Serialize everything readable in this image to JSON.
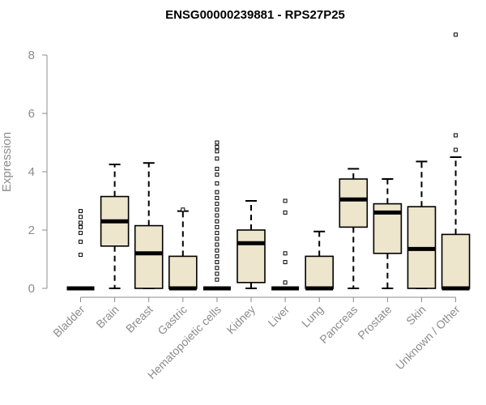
{
  "chart_data": {
    "type": "boxplot",
    "title": "ENSG00000239881 - RPS27P25",
    "xlabel": "",
    "ylabel": "Expression",
    "ylim": [
      0,
      8.7
    ],
    "yticks": [
      0,
      2,
      4,
      6,
      8
    ],
    "box_fill": "#ede5cc",
    "categories": [
      "Bladder",
      "Brain",
      "Breast",
      "Gastric",
      "Hematopoietic cells",
      "Kidney",
      "Liver",
      "Lung",
      "Pancreas",
      "Prostate",
      "Skin",
      "Unknown / Other"
    ],
    "boxes": [
      {
        "category": "Bladder",
        "min": 0,
        "q1": 0,
        "median": 0,
        "q3": 0,
        "max": 0,
        "outliers": [
          1.15,
          1.6,
          1.9,
          2.1,
          2.25,
          2.45,
          2.65
        ]
      },
      {
        "category": "Brain",
        "min": 0,
        "q1": 1.45,
        "median": 2.3,
        "q3": 3.15,
        "max": 4.25,
        "outliers": []
      },
      {
        "category": "Breast",
        "min": 0,
        "q1": 0,
        "median": 1.2,
        "q3": 2.15,
        "max": 4.3,
        "outliers": []
      },
      {
        "category": "Gastric",
        "min": 0,
        "q1": 0,
        "median": 0,
        "q3": 1.1,
        "max": 2.65,
        "outliers": [
          2.7
        ]
      },
      {
        "category": "Hematopoietic cells",
        "min": 0,
        "q1": 0,
        "median": 0,
        "q3": 0,
        "max": 0,
        "outliers": [
          0.3,
          0.5,
          0.7,
          0.9,
          1.1,
          1.3,
          1.5,
          1.7,
          1.9,
          2.1,
          2.3,
          2.5,
          2.7,
          2.9,
          3.1,
          3.3,
          3.6,
          3.9,
          4.1,
          4.45,
          4.7,
          4.85,
          5.0
        ]
      },
      {
        "category": "Kidney",
        "min": 0,
        "q1": 0.2,
        "median": 1.55,
        "q3": 2.0,
        "max": 3.0,
        "outliers": []
      },
      {
        "category": "Liver",
        "min": 0,
        "q1": 0,
        "median": 0,
        "q3": 0,
        "max": 0,
        "outliers": [
          0.2,
          0.9,
          1.2,
          2.6,
          3.0
        ]
      },
      {
        "category": "Lung",
        "min": 0,
        "q1": 0,
        "median": 0,
        "q3": 1.1,
        "max": 1.95,
        "outliers": []
      },
      {
        "category": "Pancreas",
        "min": 0,
        "q1": 2.1,
        "median": 3.05,
        "q3": 3.75,
        "max": 4.1,
        "outliers": []
      },
      {
        "category": "Prostate",
        "min": 0,
        "q1": 1.2,
        "median": 2.6,
        "q3": 2.9,
        "max": 3.75,
        "outliers": []
      },
      {
        "category": "Skin",
        "min": 0,
        "q1": 0,
        "median": 1.35,
        "q3": 2.8,
        "max": 4.35,
        "outliers": []
      },
      {
        "category": "Unknown / Other",
        "min": 0,
        "q1": 0,
        "median": 0,
        "q3": 1.85,
        "max": 4.5,
        "outliers": [
          4.75,
          5.25,
          8.7
        ]
      }
    ]
  }
}
